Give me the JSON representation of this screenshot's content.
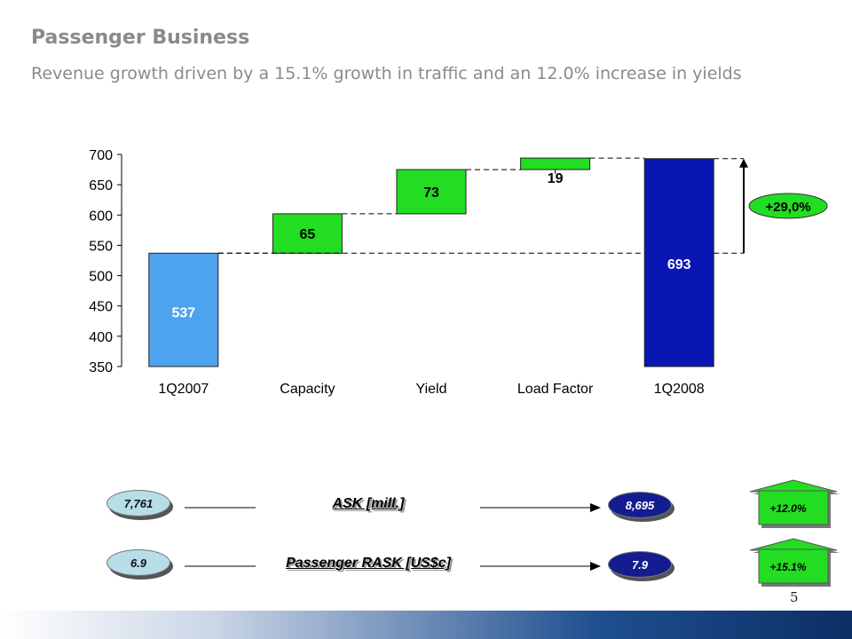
{
  "title": "Passenger Business",
  "subtitle": "Revenue growth driven by a 15.1% growth in traffic and an 12.0% increase in yields",
  "chart_data": {
    "type": "bar",
    "subtype": "waterfall",
    "categories": [
      "1Q2007",
      "Capacity",
      "Yield",
      "Load Factor",
      "1Q2008"
    ],
    "values": [
      537,
      65,
      73,
      19,
      693
    ],
    "bases": [
      350,
      537,
      602,
      675,
      350
    ],
    "bar_labels": [
      "537",
      "65",
      "73",
      "19",
      "693"
    ],
    "ylim": [
      350,
      700
    ],
    "yticks": [
      350,
      400,
      450,
      500,
      550,
      600,
      650,
      700
    ],
    "annotation": "+29,0%",
    "colors": {
      "start": "#4da3ee",
      "increment": "#22dd22",
      "end": "#0a16b3",
      "annotation": "#22dd22"
    }
  },
  "metrics": [
    {
      "from": "7,761",
      "label": "ASK [mill.]",
      "to": "8,695",
      "change": "+12.0%"
    },
    {
      "from": "6.9",
      "label": "Passenger RASK [US$c]",
      "to": "7.9",
      "change": "+15.1%"
    }
  ],
  "page_number": "5"
}
